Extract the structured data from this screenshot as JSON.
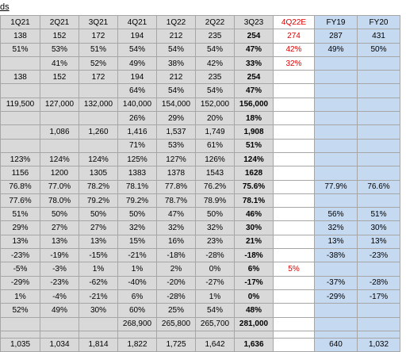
{
  "sheet_title": "ds",
  "columns": [
    {
      "label": "1Q21",
      "bg": "g"
    },
    {
      "label": "2Q21",
      "bg": "g"
    },
    {
      "label": "3Q21",
      "bg": "g"
    },
    {
      "label": "4Q21",
      "bg": "g"
    },
    {
      "label": "1Q22",
      "bg": "g"
    },
    {
      "label": "2Q22",
      "bg": "g"
    },
    {
      "label": "3Q23",
      "bg": "g",
      "bold": true
    },
    {
      "label": "4Q22E",
      "bg": "w",
      "red": true
    },
    {
      "label": "FY19",
      "bg": "b"
    },
    {
      "label": "FY20",
      "bg": "b"
    }
  ],
  "rows": [
    {
      "cells": [
        "138",
        "152",
        "172",
        "194",
        "212",
        "235",
        "254",
        "274",
        "287",
        "431"
      ]
    },
    {
      "cells": [
        "51%",
        "53%",
        "51%",
        "54%",
        "54%",
        "54%",
        "47%",
        "42%",
        "49%",
        "50%"
      ]
    },
    {
      "cells": [
        "",
        "41%",
        "52%",
        "49%",
        "38%",
        "42%",
        "33%",
        "32%",
        "",
        ""
      ]
    },
    {
      "cells": [
        "138",
        "152",
        "172",
        "194",
        "212",
        "235",
        "254",
        "",
        "",
        ""
      ]
    },
    {
      "cells": [
        "",
        "",
        "",
        "64%",
        "54%",
        "54%",
        "47%",
        "",
        "",
        ""
      ]
    },
    {
      "cells": [
        "119,500",
        "127,000",
        "132,000",
        "140,000",
        "154,000",
        "152,000",
        "156,000",
        "",
        "",
        ""
      ]
    },
    {
      "cells": [
        "",
        "",
        "",
        "26%",
        "29%",
        "20%",
        "18%",
        "",
        "",
        ""
      ]
    },
    {
      "cells": [
        "",
        "1,086",
        "1,260",
        "1,416",
        "1,537",
        "1,749",
        "1,908",
        "",
        "",
        ""
      ]
    },
    {
      "cells": [
        "",
        "",
        "",
        "71%",
        "53%",
        "61%",
        "51%",
        "",
        "",
        ""
      ]
    },
    {
      "cells": [
        "123%",
        "124%",
        "124%",
        "125%",
        "127%",
        "126%",
        "124%",
        "",
        "",
        ""
      ]
    },
    {
      "cells": [
        "1156",
        "1200",
        "1305",
        "1383",
        "1378",
        "1543",
        "1628",
        "",
        "",
        ""
      ]
    },
    {
      "cells": [
        "76.8%",
        "77.0%",
        "78.2%",
        "78.1%",
        "77.8%",
        "76.2%",
        "75.6%",
        "",
        "77.9%",
        "76.6%"
      ]
    },
    {
      "cells": [
        "77.6%",
        "78.0%",
        "79.2%",
        "79.2%",
        "78.7%",
        "78.9%",
        "78.1%",
        "",
        "",
        ""
      ]
    },
    {
      "cells": [
        "51%",
        "50%",
        "50%",
        "50%",
        "47%",
        "50%",
        "46%",
        "",
        "56%",
        "51%"
      ]
    },
    {
      "cells": [
        "29%",
        "27%",
        "27%",
        "32%",
        "32%",
        "32%",
        "30%",
        "",
        "32%",
        "30%"
      ]
    },
    {
      "cells": [
        "13%",
        "13%",
        "13%",
        "15%",
        "16%",
        "23%",
        "21%",
        "",
        "13%",
        "13%"
      ]
    },
    {
      "cells": [
        "-23%",
        "-19%",
        "-15%",
        "-21%",
        "-18%",
        "-28%",
        "-18%",
        "",
        "-38%",
        "-23%"
      ]
    },
    {
      "cells": [
        "-5%",
        "-3%",
        "1%",
        "1%",
        "2%",
        "0%",
        "6%",
        "5%",
        "",
        ""
      ]
    },
    {
      "cells": [
        "-29%",
        "-23%",
        "-62%",
        "-40%",
        "-20%",
        "-27%",
        "-17%",
        "",
        "-37%",
        "-28%"
      ]
    },
    {
      "cells": [
        "1%",
        "-4%",
        "-21%",
        "6%",
        "-28%",
        "1%",
        "0%",
        "",
        "-29%",
        "-17%"
      ]
    },
    {
      "cells": [
        "52%",
        "49%",
        "30%",
        "60%",
        "25%",
        "54%",
        "48%",
        "",
        "",
        ""
      ]
    },
    {
      "cells": [
        "",
        "",
        "",
        "268,900",
        "265,800",
        "265,700",
        "281,000",
        "",
        "",
        ""
      ]
    },
    {
      "cells": [
        "1,035",
        "1,034",
        "1,814",
        "1,822",
        "1,725",
        "1,642",
        "1,636",
        "",
        "640",
        "1,032"
      ]
    }
  ],
  "blank_before_row": 22,
  "colors": {
    "grey_cell": "#d9d9d9",
    "blue_cell": "#c5d9f1",
    "red_text": "#e00000",
    "gridline": "#a6a6a6"
  }
}
